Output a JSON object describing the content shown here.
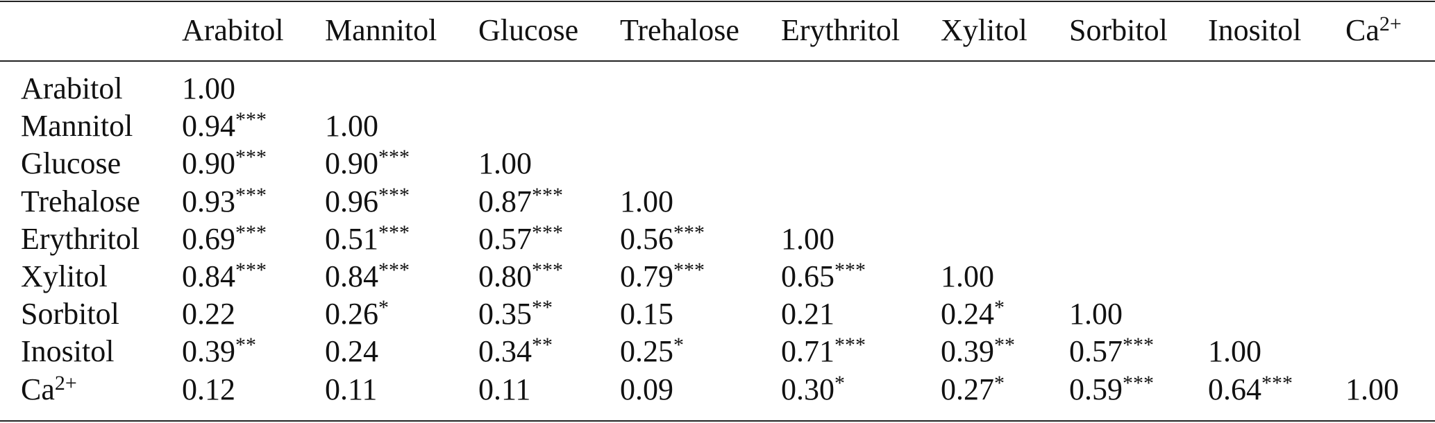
{
  "table": {
    "columns": [
      {
        "name": "Arabitol",
        "sup": ""
      },
      {
        "name": "Mannitol",
        "sup": ""
      },
      {
        "name": "Glucose",
        "sup": ""
      },
      {
        "name": "Trehalose",
        "sup": ""
      },
      {
        "name": "Erythritol",
        "sup": ""
      },
      {
        "name": "Xylitol",
        "sup": ""
      },
      {
        "name": "Sorbitol",
        "sup": ""
      },
      {
        "name": "Inositol",
        "sup": ""
      },
      {
        "name": "Ca",
        "sup": "2+"
      }
    ],
    "rows": [
      {
        "name": "Arabitol",
        "sup": "",
        "cells": [
          [
            "1.00",
            ""
          ]
        ]
      },
      {
        "name": "Mannitol",
        "sup": "",
        "cells": [
          [
            "0.94",
            "***"
          ],
          [
            "1.00",
            ""
          ]
        ]
      },
      {
        "name": "Glucose",
        "sup": "",
        "cells": [
          [
            "0.90",
            "***"
          ],
          [
            "0.90",
            "***"
          ],
          [
            "1.00",
            ""
          ]
        ]
      },
      {
        "name": "Trehalose",
        "sup": "",
        "cells": [
          [
            "0.93",
            "***"
          ],
          [
            "0.96",
            "***"
          ],
          [
            "0.87",
            "***"
          ],
          [
            "1.00",
            ""
          ]
        ]
      },
      {
        "name": "Erythritol",
        "sup": "",
        "cells": [
          [
            "0.69",
            "***"
          ],
          [
            "0.51",
            "***"
          ],
          [
            "0.57",
            "***"
          ],
          [
            "0.56",
            "***"
          ],
          [
            "1.00",
            ""
          ]
        ]
      },
      {
        "name": "Xylitol",
        "sup": "",
        "cells": [
          [
            "0.84",
            "***"
          ],
          [
            "0.84",
            "***"
          ],
          [
            "0.80",
            "***"
          ],
          [
            "0.79",
            "***"
          ],
          [
            "0.65",
            "***"
          ],
          [
            "1.00",
            ""
          ]
        ]
      },
      {
        "name": "Sorbitol",
        "sup": "",
        "cells": [
          [
            "0.22",
            ""
          ],
          [
            "0.26",
            "*"
          ],
          [
            "0.35",
            "**"
          ],
          [
            "0.15",
            ""
          ],
          [
            "0.21",
            ""
          ],
          [
            "0.24",
            "*"
          ],
          [
            "1.00",
            ""
          ]
        ]
      },
      {
        "name": "Inositol",
        "sup": "",
        "cells": [
          [
            "0.39",
            "**"
          ],
          [
            "0.24",
            ""
          ],
          [
            "0.34",
            "**"
          ],
          [
            "0.25",
            "*"
          ],
          [
            "0.71",
            "***"
          ],
          [
            "0.39",
            "**"
          ],
          [
            "0.57",
            "***"
          ],
          [
            "1.00",
            ""
          ]
        ]
      },
      {
        "name": "Ca",
        "sup": "2+",
        "cells": [
          [
            "0.12",
            ""
          ],
          [
            "0.11",
            ""
          ],
          [
            "0.11",
            ""
          ],
          [
            "0.09",
            ""
          ],
          [
            "0.30",
            "*"
          ],
          [
            "0.27",
            "*"
          ],
          [
            "0.59",
            "***"
          ],
          [
            "0.64",
            "***"
          ],
          [
            "1.00",
            ""
          ]
        ]
      }
    ]
  }
}
